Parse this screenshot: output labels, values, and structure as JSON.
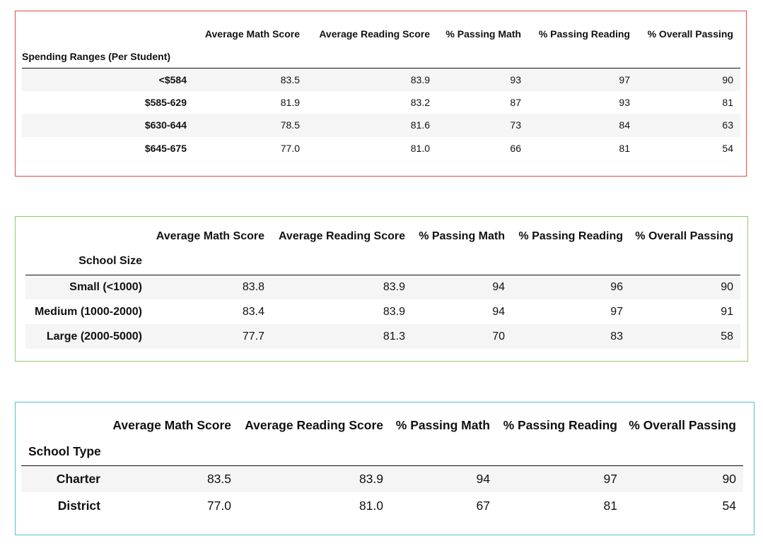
{
  "columns": [
    "Average Math Score",
    "Average Reading Score",
    "% Passing Math",
    "% Passing Reading",
    "% Overall Passing"
  ],
  "tables": [
    {
      "index_name": "Spending Ranges (Per Student)",
      "rows": [
        {
          "label": "<$584",
          "values": [
            "83.5",
            "83.9",
            "93",
            "97",
            "90"
          ]
        },
        {
          "label": "$585-629",
          "values": [
            "81.9",
            "83.2",
            "87",
            "93",
            "81"
          ]
        },
        {
          "label": "$630-644",
          "values": [
            "78.5",
            "81.6",
            "73",
            "84",
            "63"
          ]
        },
        {
          "label": "$645-675",
          "values": [
            "77.0",
            "81.0",
            "66",
            "81",
            "54"
          ]
        }
      ],
      "border_color": "#e04b4b"
    },
    {
      "index_name": "School Size",
      "rows": [
        {
          "label": "Small (<1000)",
          "values": [
            "83.8",
            "83.9",
            "94",
            "96",
            "90"
          ]
        },
        {
          "label": "Medium (1000-2000)",
          "values": [
            "83.4",
            "83.9",
            "94",
            "97",
            "91"
          ]
        },
        {
          "label": "Large (2000-5000)",
          "values": [
            "77.7",
            "81.3",
            "70",
            "83",
            "58"
          ]
        }
      ],
      "border_color": "#93c96a"
    },
    {
      "index_name": "School Type",
      "rows": [
        {
          "label": "Charter",
          "values": [
            "83.5",
            "83.9",
            "94",
            "97",
            "90"
          ]
        },
        {
          "label": "District",
          "values": [
            "77.0",
            "81.0",
            "67",
            "81",
            "54"
          ]
        }
      ],
      "border_color": "#56c3cf"
    }
  ]
}
